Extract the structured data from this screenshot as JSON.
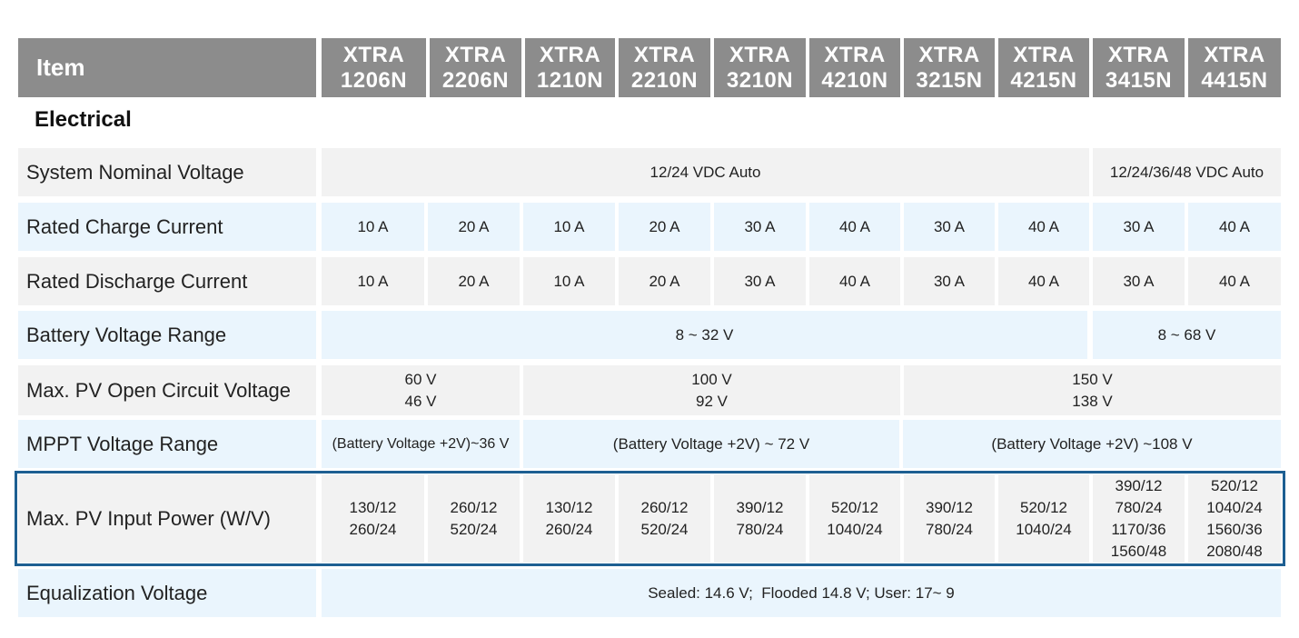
{
  "header": {
    "item_label": "Item",
    "models": [
      {
        "line1": "XTRA",
        "line2": "1206N"
      },
      {
        "line1": "XTRA",
        "line2": "2206N"
      },
      {
        "line1": "XTRA",
        "line2": "1210N"
      },
      {
        "line1": "XTRA",
        "line2": "2210N"
      },
      {
        "line1": "XTRA",
        "line2": "3210N"
      },
      {
        "line1": "XTRA",
        "line2": "4210N"
      },
      {
        "line1": "XTRA",
        "line2": "3215N"
      },
      {
        "line1": "XTRA",
        "line2": "4215N"
      },
      {
        "line1": "XTRA",
        "line2": "3415N"
      },
      {
        "line1": "XTRA",
        "line2": "4415N"
      }
    ]
  },
  "section_title": "Electrical",
  "rows": {
    "system_nominal_voltage": {
      "label": "System Nominal Voltage",
      "values": [
        "12/24 VDC Auto",
        "12/24/36/48 VDC Auto"
      ]
    },
    "rated_charge_current": {
      "label": "Rated Charge Current",
      "values": [
        "10 A",
        "20 A",
        "10 A",
        "20 A",
        "30 A",
        "40 A",
        "30 A",
        "40 A",
        "30 A",
        "40 A"
      ]
    },
    "rated_discharge_current": {
      "label": "Rated Discharge Current",
      "values": [
        "10 A",
        "20 A",
        "10 A",
        "20 A",
        "30 A",
        "40 A",
        "30 A",
        "40 A",
        "30 A",
        "40 A"
      ]
    },
    "battery_voltage_range": {
      "label": "Battery Voltage Range",
      "values": [
        "8 ~ 32 V",
        "8 ~ 68 V"
      ]
    },
    "max_pv_open_circuit_voltage": {
      "label": "Max. PV Open Circuit Voltage",
      "values": [
        {
          "line1": "60 V",
          "line2": "46 V"
        },
        {
          "line1": "100 V",
          "line2": "92 V"
        },
        {
          "line1": "150 V",
          "line2": "138 V"
        }
      ]
    },
    "mppt_voltage_range": {
      "label": "MPPT Voltage Range",
      "values": [
        "(Battery Voltage +2V)~36 V",
        "(Battery Voltage +2V) ~ 72 V",
        "(Battery Voltage +2V) ~108 V"
      ]
    },
    "max_pv_input_power": {
      "label": "Max. PV Input Power (W/V)",
      "values": [
        [
          "130/12",
          "260/24"
        ],
        [
          "260/12",
          "520/24"
        ],
        [
          "130/12",
          "260/24"
        ],
        [
          "260/12",
          "520/24"
        ],
        [
          "390/12",
          "780/24"
        ],
        [
          "520/12",
          "1040/24"
        ],
        [
          "390/12",
          "780/24"
        ],
        [
          "520/12",
          "1040/24"
        ],
        [
          "390/12",
          "780/24",
          "1170/36",
          "1560/48"
        ],
        [
          "520/12",
          "1040/24",
          "1560/36",
          "2080/48"
        ]
      ]
    },
    "equalization_voltage": {
      "label": "Equalization Voltage",
      "values": [
        "Sealed: 14.6 V;  Flooded 14.8 V; User: 17~ 9"
      ]
    }
  },
  "colors": {
    "header_bg": "#8c8c8c",
    "row_gray": "#f2f2f2",
    "row_blue": "#eaf5fd",
    "highlight_border": "#1d5f92"
  }
}
